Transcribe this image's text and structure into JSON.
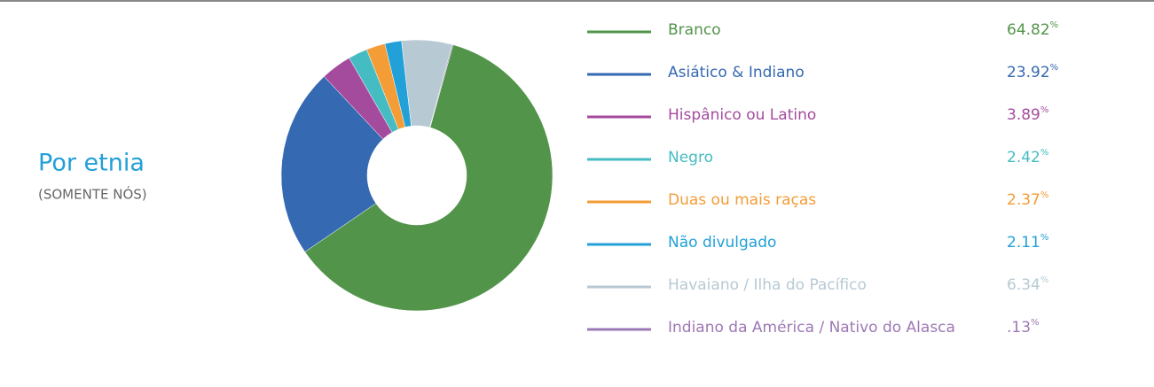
{
  "chart_data": {
    "type": "donut",
    "title": "Por etnia",
    "subtitle": "(SOMENTE NÓS)",
    "categories": [
      "Branco",
      "Asiático & Indiano",
      "Hispânico ou Latino",
      "Negro",
      "Duas ou mais raças",
      "Não divulgado",
      "Havaiano / Ilha do Pacífico",
      "Indiano da América / Nativo do Alasca"
    ],
    "values": [
      64.82,
      23.92,
      3.89,
      2.42,
      2.37,
      2.11,
      6.34,
      0.13
    ],
    "value_labels": [
      "64.82%",
      "23.92%",
      "3.89%",
      "2.42%",
      "2.37%",
      "2.11%",
      "6.34%",
      ".13%"
    ],
    "colors": [
      "#52944a",
      "#3569b1",
      "#a54b9e",
      "#45bcc1",
      "#f49c36",
      "#22a0d8",
      "#b7c9d3",
      "#9d78b5"
    ]
  }
}
